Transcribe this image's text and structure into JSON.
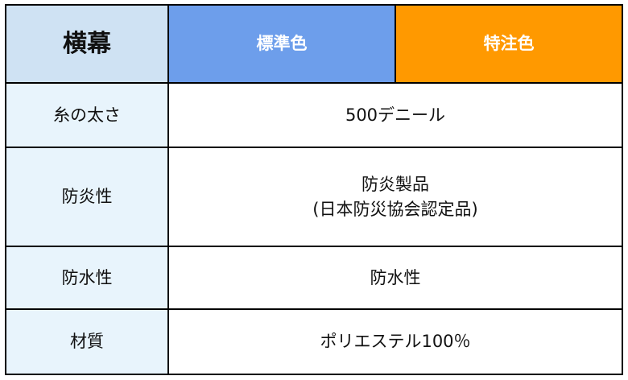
{
  "header": {
    "title": "横幕",
    "standard": "標準色",
    "special": "特注色"
  },
  "colors": {
    "header_left": "#cfe2f3",
    "standard": "#6d9eeb",
    "special": "#ff9900",
    "label_bg": "#e8f4fc"
  },
  "rows": [
    {
      "label": "糸の太さ",
      "value": "500デニール",
      "value2": ""
    },
    {
      "label": "防炎性",
      "value": "防炎製品",
      "value2": "(日本防災協会認定品)"
    },
    {
      "label": "防水性",
      "value": "防水性",
      "value2": ""
    },
    {
      "label": "材質",
      "value": "ポリエステル100％",
      "value2": ""
    }
  ]
}
